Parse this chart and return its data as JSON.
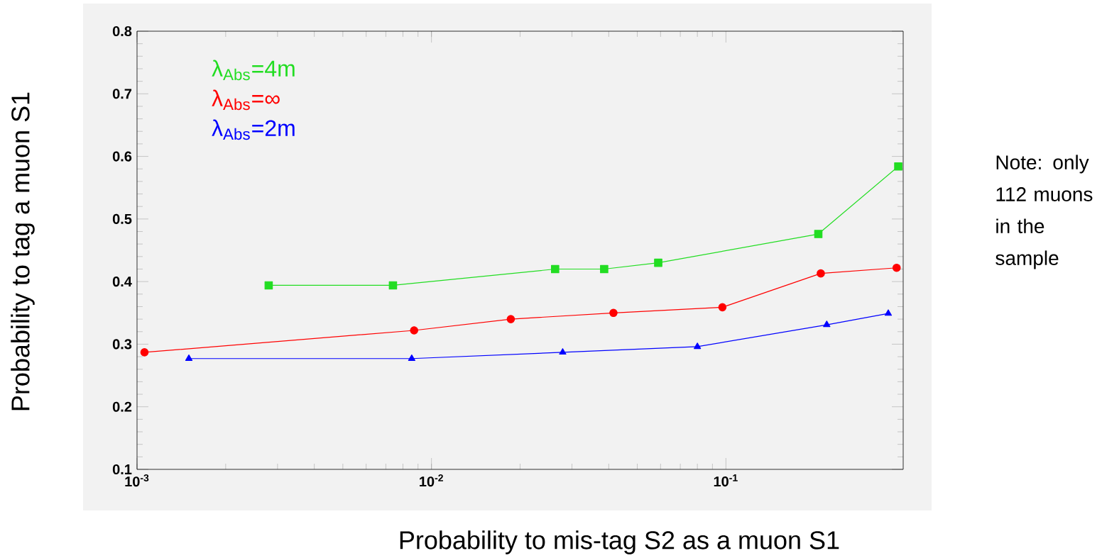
{
  "chart_data": {
    "type": "line",
    "xlabel": "Probability to mis-tag S2 as a muon S1",
    "ylabel": "Probability to tag a muon S1",
    "annotations": [
      "Note: only 112 muons in the sample"
    ],
    "log": "x",
    "legend": "top left",
    "xlim": [
      0.001,
      0.4
    ],
    "ylim": [
      0.1,
      0.8
    ],
    "xticks": [
      {
        "value": 0.001,
        "label": "10$^{-3}$"
      },
      {
        "value": 0.01,
        "label": "10$^{-2}$"
      },
      {
        "value": 0.1,
        "label": "10$^{-1}$"
      }
    ],
    "yticks": [
      0.1,
      0.2,
      0.3,
      0.4,
      0.5,
      0.6,
      0.7,
      0.8
    ],
    "series": [
      {
        "name": "λ$_{Abs}$=4m",
        "color": "#22dd22",
        "marker": "square",
        "x": [
          0.0028,
          0.0074,
          0.0263,
          0.0386,
          0.0589,
          0.206,
          0.385
        ],
        "values": [
          0.394,
          0.394,
          0.42,
          0.42,
          0.43,
          0.476,
          0.584
        ]
      },
      {
        "name": "λ$_{Abs}$=∞",
        "color": "#ff0000",
        "marker": "circle",
        "x": [
          0.00106,
          0.00873,
          0.0186,
          0.0415,
          0.0973,
          0.21,
          0.38
        ],
        "values": [
          0.287,
          0.322,
          0.34,
          0.35,
          0.359,
          0.413,
          0.422
        ]
      },
      {
        "name": "λ$_{Abs}$=2m",
        "color": "#0000ff",
        "marker": "triangle",
        "x": [
          0.0015,
          0.00857,
          0.0279,
          0.08,
          0.22,
          0.356
        ],
        "values": [
          0.277,
          0.277,
          0.287,
          0.296,
          0.331,
          0.349
        ]
      }
    ]
  }
}
